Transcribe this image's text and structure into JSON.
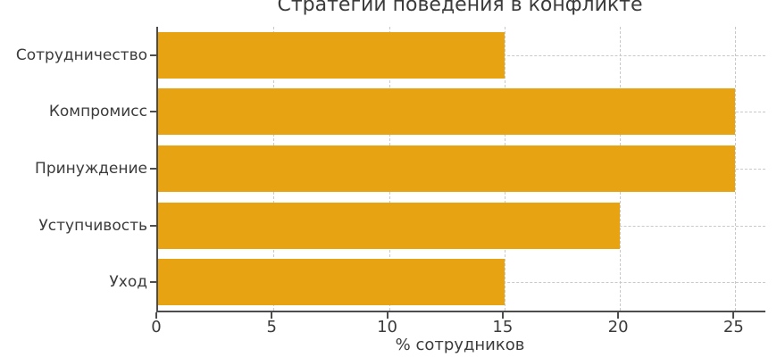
{
  "chart_data": {
    "type": "bar",
    "orientation": "horizontal",
    "title": "Стратегии поведения в конфликте",
    "categories": [
      "Сотрудничество",
      "Компромисс",
      "Принуждение",
      "Уступчивость",
      "Уход"
    ],
    "values": [
      15,
      25,
      25,
      20,
      15
    ],
    "xlabel": "% сотрудников",
    "ylabel": "",
    "xticks": [
      0,
      5,
      10,
      15,
      20,
      25
    ],
    "xlim": [
      0,
      26.3
    ],
    "grid": true,
    "legend": false,
    "bar_color": "#E7A312",
    "grid_color": "#c9c9c9",
    "axis_color": "#4d4d4d",
    "text_color": "#3b3b3b",
    "background": "#ffffff"
  }
}
